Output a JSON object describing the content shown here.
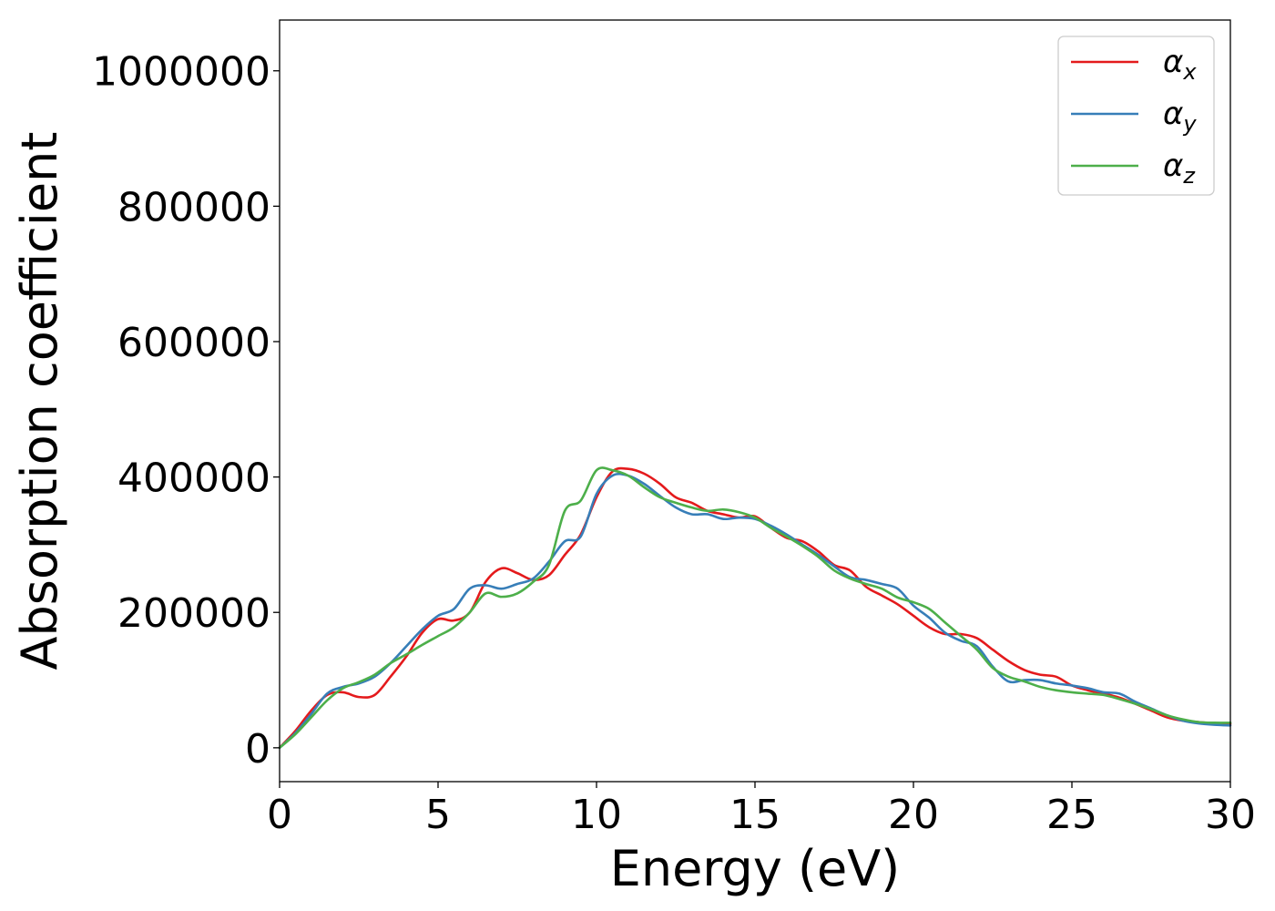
{
  "chart_data": {
    "type": "line",
    "title": "",
    "xlabel": "Energy (eV)",
    "ylabel": "Absorption coefficient",
    "xlim": [
      0,
      30
    ],
    "ylim": [
      -50000,
      1075000
    ],
    "xticks": [
      "0",
      "5",
      "10",
      "15",
      "20",
      "25",
      "30"
    ],
    "yticks": [
      "0",
      "200000",
      "400000",
      "600000",
      "800000",
      "1000000"
    ],
    "grid": false,
    "legend_position": "top-right",
    "series": [
      {
        "name": "α",
        "subscript": "x",
        "color": "#e41a1c",
        "x": [
          0,
          0.5,
          1.0,
          1.5,
          2.0,
          2.5,
          3.0,
          3.5,
          4.0,
          4.5,
          5.0,
          5.5,
          6.0,
          6.5,
          7.0,
          7.5,
          8.0,
          8.5,
          9.0,
          9.5,
          10.0,
          10.5,
          11.0,
          11.5,
          12.0,
          12.5,
          13.0,
          13.5,
          14.0,
          14.5,
          15.0,
          15.5,
          16.0,
          16.5,
          17.0,
          17.5,
          18.0,
          18.5,
          19.0,
          19.5,
          20.0,
          20.5,
          21.0,
          21.5,
          22.0,
          22.5,
          23.0,
          23.5,
          24.0,
          24.5,
          25.0,
          25.5,
          26.0,
          26.5,
          27.0,
          27.5,
          28.0,
          28.5,
          29.0,
          29.5,
          30.0
        ],
        "y": [
          0,
          25000,
          55000,
          78000,
          82000,
          75000,
          78000,
          105000,
          135000,
          170000,
          190000,
          188000,
          200000,
          245000,
          265000,
          258000,
          248000,
          255000,
          285000,
          315000,
          370000,
          408000,
          412000,
          405000,
          390000,
          370000,
          362000,
          350000,
          345000,
          340000,
          342000,
          325000,
          310000,
          305000,
          290000,
          270000,
          262000,
          238000,
          225000,
          212000,
          195000,
          178000,
          168000,
          168000,
          162000,
          145000,
          128000,
          115000,
          108000,
          105000,
          92000,
          85000,
          80000,
          74000,
          65000,
          55000,
          45000,
          40000,
          38000,
          36000,
          35000
        ]
      },
      {
        "name": "α",
        "subscript": "y",
        "color": "#377eb8",
        "x": [
          0,
          0.5,
          1.0,
          1.5,
          2.0,
          2.5,
          3.0,
          3.5,
          4.0,
          4.5,
          5.0,
          5.5,
          6.0,
          6.5,
          7.0,
          7.5,
          8.0,
          8.5,
          9.0,
          9.5,
          10.0,
          10.5,
          11.0,
          11.5,
          12.0,
          12.5,
          13.0,
          13.5,
          14.0,
          14.5,
          15.0,
          15.5,
          16.0,
          16.5,
          17.0,
          17.5,
          18.0,
          18.5,
          19.0,
          19.5,
          20.0,
          20.5,
          21.0,
          21.5,
          22.0,
          22.5,
          23.0,
          23.5,
          24.0,
          24.5,
          25.0,
          25.5,
          26.0,
          26.5,
          27.0,
          27.5,
          28.0,
          28.5,
          29.0,
          29.5,
          30.0
        ],
        "y": [
          0,
          22000,
          50000,
          80000,
          90000,
          95000,
          105000,
          125000,
          150000,
          175000,
          195000,
          205000,
          235000,
          240000,
          235000,
          242000,
          250000,
          275000,
          305000,
          312000,
          375000,
          402000,
          402000,
          390000,
          372000,
          355000,
          345000,
          345000,
          338000,
          340000,
          338000,
          328000,
          315000,
          300000,
          285000,
          268000,
          252000,
          248000,
          242000,
          235000,
          210000,
          192000,
          170000,
          158000,
          150000,
          120000,
          98000,
          100000,
          100000,
          95000,
          92000,
          88000,
          82000,
          80000,
          68000,
          58000,
          48000,
          40000,
          36000,
          34000,
          33000
        ]
      },
      {
        "name": "α",
        "subscript": "z",
        "color": "#4daf4a",
        "x": [
          0,
          0.5,
          1.0,
          1.5,
          2.0,
          2.5,
          3.0,
          3.5,
          4.0,
          4.5,
          5.0,
          5.5,
          6.0,
          6.5,
          7.0,
          7.5,
          8.0,
          8.5,
          9.0,
          9.5,
          10.0,
          10.5,
          11.0,
          11.5,
          12.0,
          12.5,
          13.0,
          13.5,
          14.0,
          14.5,
          15.0,
          15.5,
          16.0,
          16.5,
          17.0,
          17.5,
          18.0,
          18.5,
          19.0,
          19.5,
          20.0,
          20.5,
          21.0,
          21.5,
          22.0,
          22.5,
          23.0,
          23.5,
          24.0,
          24.5,
          25.0,
          25.5,
          26.0,
          26.5,
          27.0,
          27.5,
          28.0,
          28.5,
          29.0,
          29.5,
          30.0
        ],
        "y": [
          0,
          20000,
          45000,
          70000,
          88000,
          97000,
          108000,
          125000,
          138000,
          152000,
          165000,
          178000,
          200000,
          228000,
          223000,
          228000,
          245000,
          270000,
          350000,
          365000,
          410000,
          410000,
          402000,
          385000,
          370000,
          362000,
          355000,
          350000,
          352000,
          348000,
          340000,
          325000,
          312000,
          298000,
          282000,
          262000,
          250000,
          242000,
          235000,
          222000,
          215000,
          205000,
          185000,
          165000,
          145000,
          118000,
          105000,
          98000,
          90000,
          85000,
          82000,
          80000,
          78000,
          72000,
          65000,
          57000,
          48000,
          42000,
          38000,
          37000,
          37000
        ]
      }
    ]
  }
}
